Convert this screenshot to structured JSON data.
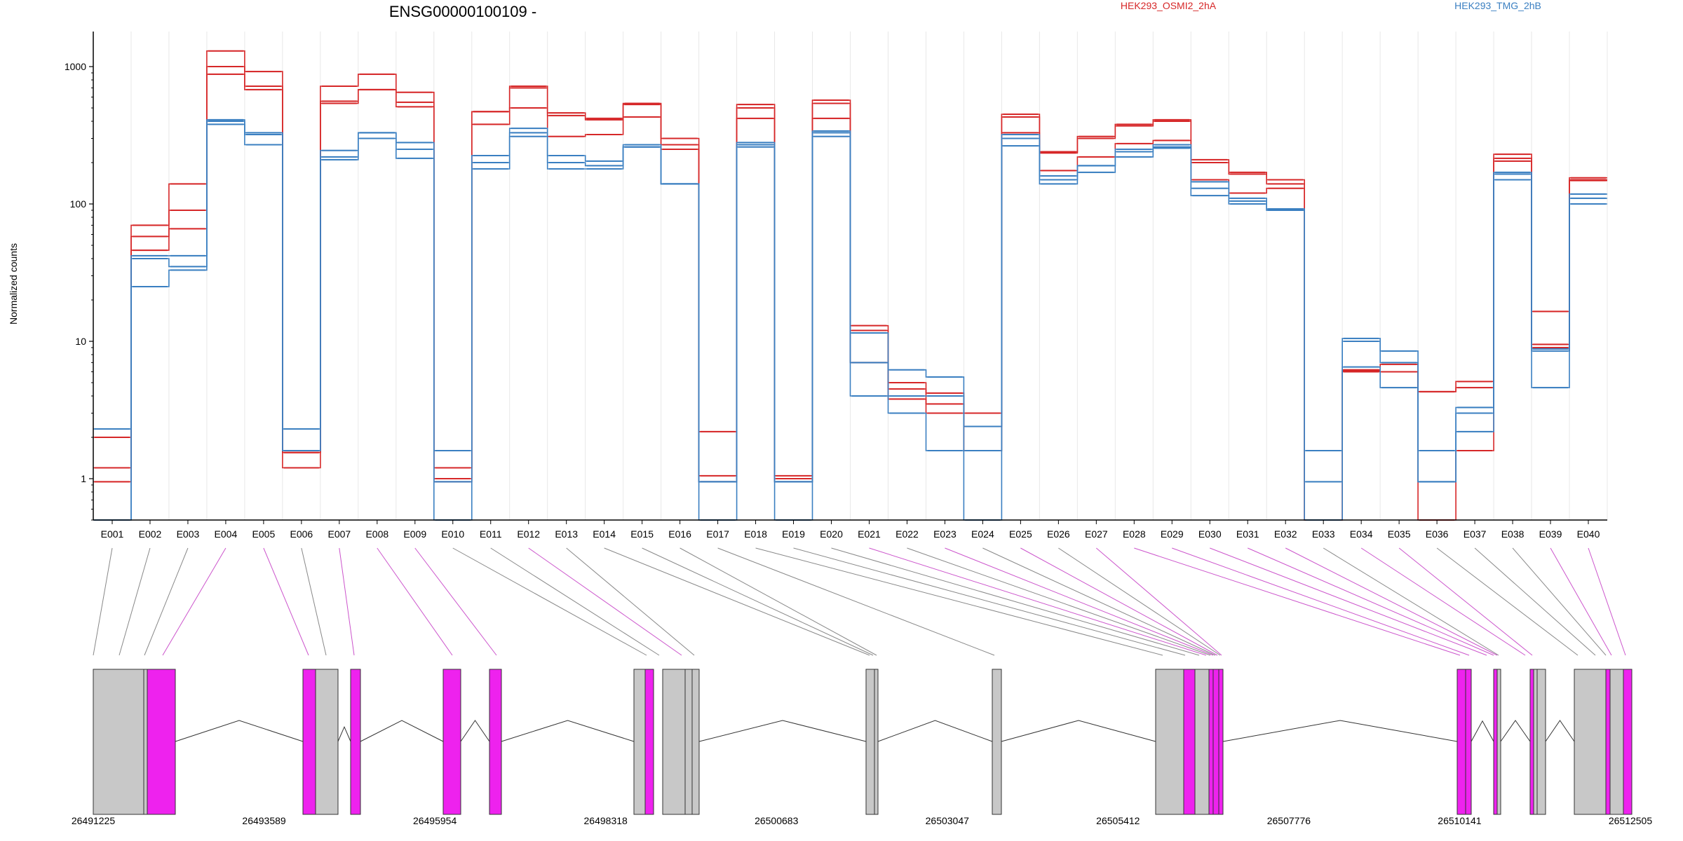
{
  "title": "ENSG00000100109 -",
  "legend": {
    "placement": "top-right",
    "entries": [
      {
        "name": "HEK293_OSMI2_2hA",
        "color": "#d62728"
      },
      {
        "name": "HEK293_TMG_2hB",
        "color": "#3a7fc1"
      }
    ]
  },
  "chart_data": {
    "type": "line",
    "title": "ENSG00000100109 -",
    "ylabel": "Normalized counts",
    "yscale": "log",
    "ylim": [
      0.5,
      1800
    ],
    "yticks": [
      1,
      10,
      100,
      1000
    ],
    "grid": "vertical",
    "categories": [
      "E001",
      "E002",
      "E003",
      "E004",
      "E005",
      "E006",
      "E007",
      "E008",
      "E009",
      "E010",
      "E011",
      "E012",
      "E013",
      "E014",
      "E015",
      "E016",
      "E017",
      "E018",
      "E019",
      "E020",
      "E021",
      "E022",
      "E023",
      "E024",
      "E025",
      "E026",
      "E027",
      "E028",
      "E029",
      "E030",
      "E031",
      "E032",
      "E033",
      "E034",
      "E035",
      "E036",
      "E037",
      "E038",
      "E039",
      "E040"
    ],
    "series": [
      {
        "group": "HEK293_OSMI2_2hA",
        "color": "#d62728",
        "values": [
          2,
          70,
          140,
          1300,
          920,
          1.2,
          720,
          880,
          650,
          1,
          470,
          720,
          460,
          420,
          540,
          300,
          2.2,
          530,
          1,
          570,
          13,
          5,
          4.2,
          3,
          450,
          240,
          310,
          380,
          410,
          210,
          170,
          150,
          0.5,
          6.2,
          6,
          4.3,
          5.1,
          230,
          16.5,
          150
        ]
      },
      {
        "group": "HEK293_OSMI2_2hA",
        "color": "#d62728",
        "values": [
          1.2,
          58,
          90,
          1000,
          720,
          1.55,
          560,
          680,
          550,
          1.2,
          470,
          700,
          440,
          410,
          530,
          270,
          1.05,
          500,
          1.05,
          540,
          12,
          4.5,
          3.5,
          2.4,
          430,
          235,
          300,
          370,
          400,
          200,
          165,
          140,
          0.5,
          6.1,
          6.8,
          4.3,
          4.6,
          215,
          9.5,
          155
        ]
      },
      {
        "group": "HEK293_OSMI2_2hA",
        "color": "#d62728",
        "values": [
          0.95,
          46,
          66,
          880,
          680,
          1.55,
          540,
          680,
          510,
          0.95,
          380,
          500,
          310,
          320,
          430,
          250,
          0.95,
          420,
          0.95,
          420,
          7,
          3.8,
          3,
          1.6,
          330,
          175,
          220,
          275,
          290,
          150,
          120,
          130,
          0.5,
          6,
          6,
          0.5,
          1.6,
          205,
          9,
          148
        ]
      },
      {
        "group": "HEK293_TMG_2hB",
        "color": "#3a7fc1",
        "values": [
          2.3,
          42,
          42,
          410,
          330,
          2.3,
          245,
          330,
          280,
          1.6,
          225,
          355,
          225,
          205,
          270,
          140,
          0.95,
          280,
          0.95,
          340,
          11.5,
          6.2,
          5.5,
          2.4,
          320,
          160,
          190,
          250,
          270,
          145,
          110,
          92,
          1.6,
          10.5,
          8.5,
          1.6,
          3.3,
          170,
          8.8,
          118
        ]
      },
      {
        "group": "HEK293_TMG_2hB",
        "color": "#3a7fc1",
        "values": [
          0.5,
          40,
          35,
          400,
          320,
          1.6,
          220,
          330,
          250,
          0.95,
          200,
          330,
          200,
          190,
          260,
          140,
          0.95,
          270,
          0.95,
          330,
          7,
          4,
          4,
          1.6,
          300,
          150,
          190,
          240,
          260,
          130,
          105,
          90,
          0.95,
          10,
          7,
          0.95,
          3,
          165,
          8.5,
          110
        ]
      },
      {
        "group": "HEK293_TMG_2hB",
        "color": "#3a7fc1",
        "values": [
          0.5,
          25,
          33,
          380,
          270,
          1.6,
          210,
          300,
          215,
          0.5,
          180,
          310,
          180,
          180,
          260,
          140,
          0.5,
          260,
          0.5,
          310,
          4,
          3,
          1.6,
          0.5,
          265,
          140,
          170,
          220,
          255,
          115,
          100,
          90,
          0.5,
          6.5,
          4.6,
          0.95,
          2.2,
          150,
          4.6,
          100
        ]
      }
    ],
    "exon_label_angles": [
      {
        "exon": "E001",
        "target_frac": 0.0
      },
      {
        "exon": "E002",
        "target_frac": 0.018
      }
    ]
  },
  "gene_model": {
    "coordinates": [
      "26491225",
      "26493589",
      "26495954",
      "26498318",
      "26500683",
      "26503047",
      "26505412",
      "26507776",
      "26510141",
      "26512505"
    ],
    "highlight_color": "#ee22ee",
    "exon_color": "#c8c8c8"
  }
}
